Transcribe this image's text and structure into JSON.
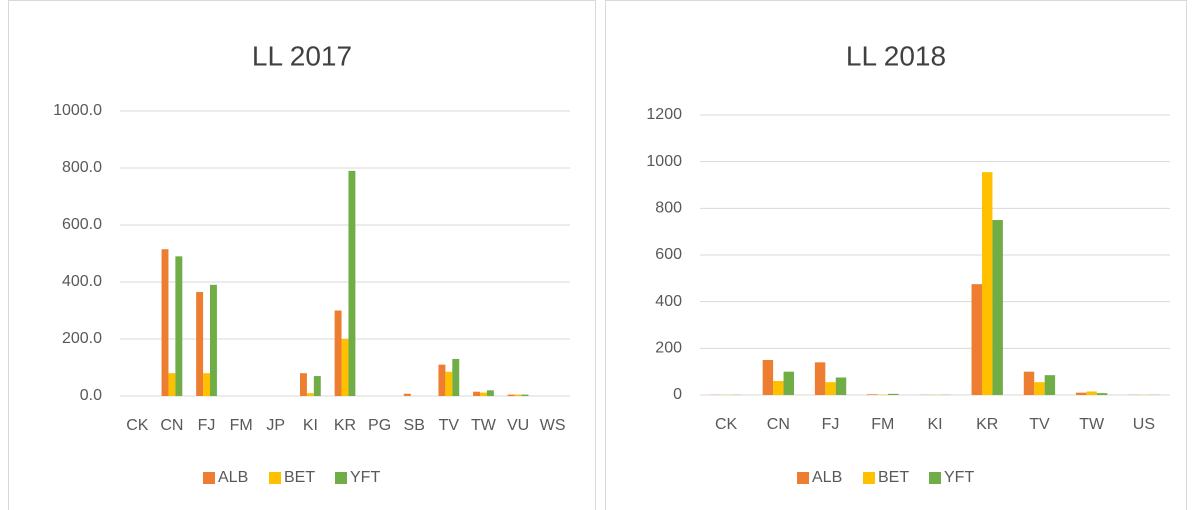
{
  "chart_data": [
    {
      "type": "bar",
      "title": "LL 2017",
      "categories": [
        "CK",
        "CN",
        "FJ",
        "FM",
        "JP",
        "KI",
        "KR",
        "PG",
        "SB",
        "TV",
        "TW",
        "VU",
        "WS"
      ],
      "series": [
        {
          "name": "ALB",
          "color": "#ed7d31",
          "values": [
            0,
            515,
            365,
            0,
            0,
            80,
            300,
            0,
            8,
            110,
            15,
            5,
            0
          ]
        },
        {
          "name": "BET",
          "color": "#ffc000",
          "values": [
            0,
            80,
            80,
            0,
            0,
            10,
            200,
            0,
            0,
            85,
            12,
            5,
            0
          ]
        },
        {
          "name": "YFT",
          "color": "#70ad47",
          "values": [
            0,
            490,
            390,
            0,
            0,
            70,
            790,
            0,
            0,
            130,
            20,
            5,
            0
          ]
        }
      ],
      "ylim": [
        0,
        1000
      ],
      "yticks": [
        {
          "value": 0,
          "label": "0.0"
        },
        {
          "value": 200,
          "label": "200.0"
        },
        {
          "value": 400,
          "label": "400.0"
        },
        {
          "value": 600,
          "label": "600.0"
        },
        {
          "value": 800,
          "label": "800.0"
        },
        {
          "value": 1000,
          "label": "1000.0"
        }
      ],
      "grid": true,
      "legend": "bottom"
    },
    {
      "type": "bar",
      "title": "LL 2018",
      "categories": [
        "CK",
        "CN",
        "FJ",
        "FM",
        "KI",
        "KR",
        "TV",
        "TW",
        "US"
      ],
      "series": [
        {
          "name": "ALB",
          "color": "#ed7d31",
          "values": [
            1,
            150,
            140,
            3,
            1,
            475,
            100,
            10,
            1
          ]
        },
        {
          "name": "BET",
          "color": "#ffc000",
          "values": [
            1,
            60,
            55,
            2,
            1,
            955,
            55,
            15,
            1
          ]
        },
        {
          "name": "YFT",
          "color": "#70ad47",
          "values": [
            1,
            100,
            75,
            5,
            1,
            750,
            85,
            8,
            1
          ]
        }
      ],
      "ylim": [
        0,
        1200
      ],
      "yticks": [
        0,
        200,
        400,
        600,
        800,
        1000,
        1200
      ],
      "grid": true,
      "legend": "bottom"
    }
  ]
}
